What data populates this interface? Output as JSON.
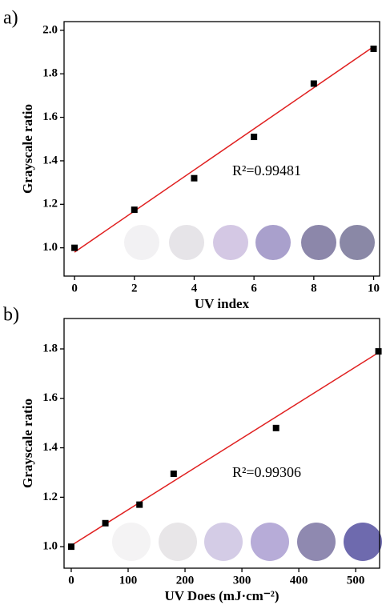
{
  "chart_data": [
    {
      "type": "scatter",
      "panel_label": "a)",
      "xlabel": "UV index",
      "ylabel": "Grayscale ratio",
      "annotation": "R²=0.99481",
      "x": [
        0,
        2,
        4,
        6,
        8,
        10
      ],
      "values": [
        1.0,
        1.175,
        1.32,
        1.51,
        1.755,
        1.915
      ],
      "color": "#000000",
      "fit_line": {
        "x": [
          0,
          10
        ],
        "values": [
          0.98,
          1.925
        ],
        "color": "#e02020"
      },
      "xlim": [
        -0.35,
        10.2
      ],
      "ylim": [
        0.87,
        2.04
      ],
      "xticks": [
        0,
        2,
        4,
        6,
        8,
        10
      ],
      "yticks": [
        {
          "value": 1,
          "label": "1.0"
        },
        {
          "value": 1.2,
          "label": "1.2"
        },
        {
          "value": 1.4,
          "label": "1.4"
        },
        {
          "value": 1.6,
          "label": "1.6"
        },
        {
          "value": 1.8,
          "label": "1.8"
        },
        {
          "value": 2,
          "label": "2.0"
        }
      ]
    },
    {
      "type": "scatter",
      "panel_label": "b)",
      "xlabel": "UV Does (mJ·cm⁻²)",
      "ylabel": "Grayscale ratio",
      "annotation": "R²=0.99306",
      "x": [
        0,
        60,
        120,
        180,
        360,
        540
      ],
      "values": [
        1.0,
        1.095,
        1.17,
        1.295,
        1.48,
        1.79
      ],
      "color": "#000000",
      "fit_line": {
        "x": [
          0,
          540
        ],
        "values": [
          1.005,
          1.785
        ],
        "color": "#e02020"
      },
      "xlim": [
        -12.6,
        542
      ],
      "ylim": [
        0.913,
        1.923
      ],
      "xticks": [
        0,
        100,
        200,
        300,
        400,
        500
      ],
      "yticks": [
        {
          "value": 1,
          "label": "1.0"
        },
        {
          "value": 1.2,
          "label": "1.2"
        },
        {
          "value": 1.4,
          "label": "1.4"
        },
        {
          "value": 1.6,
          "label": "1.6"
        },
        {
          "value": 1.8,
          "label": "1.8"
        }
      ]
    }
  ]
}
